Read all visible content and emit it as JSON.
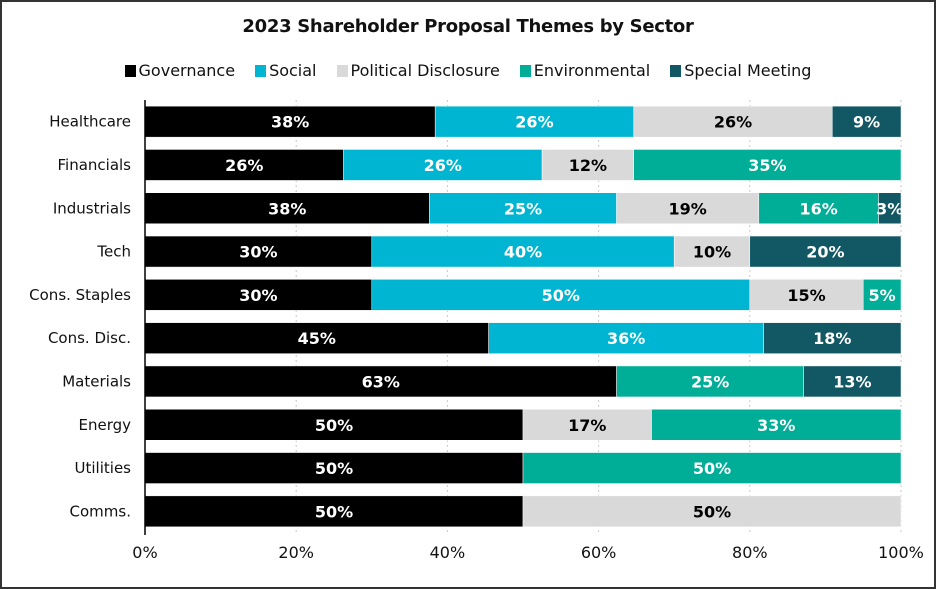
{
  "chart_data": {
    "type": "bar",
    "orientation": "horizontal",
    "stacked": true,
    "title": "2023 Shareholder Proposal Themes by Sector",
    "categories": [
      "Healthcare",
      "Financials",
      "Industrials",
      "Tech",
      "Cons. Staples",
      "Cons. Disc.",
      "Materials",
      "Energy",
      "Utilities",
      "Comms."
    ],
    "series": [
      {
        "name": "Governance",
        "color": "#000000",
        "label_color": "#ffffff",
        "values": [
          38,
          26,
          38,
          30,
          30,
          45,
          63,
          50,
          50,
          50
        ]
      },
      {
        "name": "Social",
        "color": "#00b5d1",
        "label_color": "#ffffff",
        "values": [
          26,
          26,
          25,
          40,
          50,
          36,
          0,
          0,
          0,
          0
        ]
      },
      {
        "name": "Political Disclosure",
        "color": "#d9d9d9",
        "label_color": "#000000",
        "values": [
          26,
          12,
          19,
          10,
          15,
          0,
          0,
          17,
          0,
          50
        ]
      },
      {
        "name": "Environmental",
        "color": "#00ad97",
        "label_color": "#ffffff",
        "values": [
          0,
          35,
          16,
          0,
          5,
          0,
          25,
          33,
          50,
          0
        ]
      },
      {
        "name": "Special Meeting",
        "color": "#115764",
        "label_color": "#ffffff",
        "values": [
          9,
          0,
          3,
          20,
          0,
          18,
          13,
          0,
          0,
          0
        ]
      }
    ],
    "xlim": [
      0,
      100
    ],
    "xticks": [
      "0%",
      "20%",
      "40%",
      "60%",
      "80%",
      "100%"
    ],
    "grid": "vertical dotted",
    "legend_position": "top"
  }
}
